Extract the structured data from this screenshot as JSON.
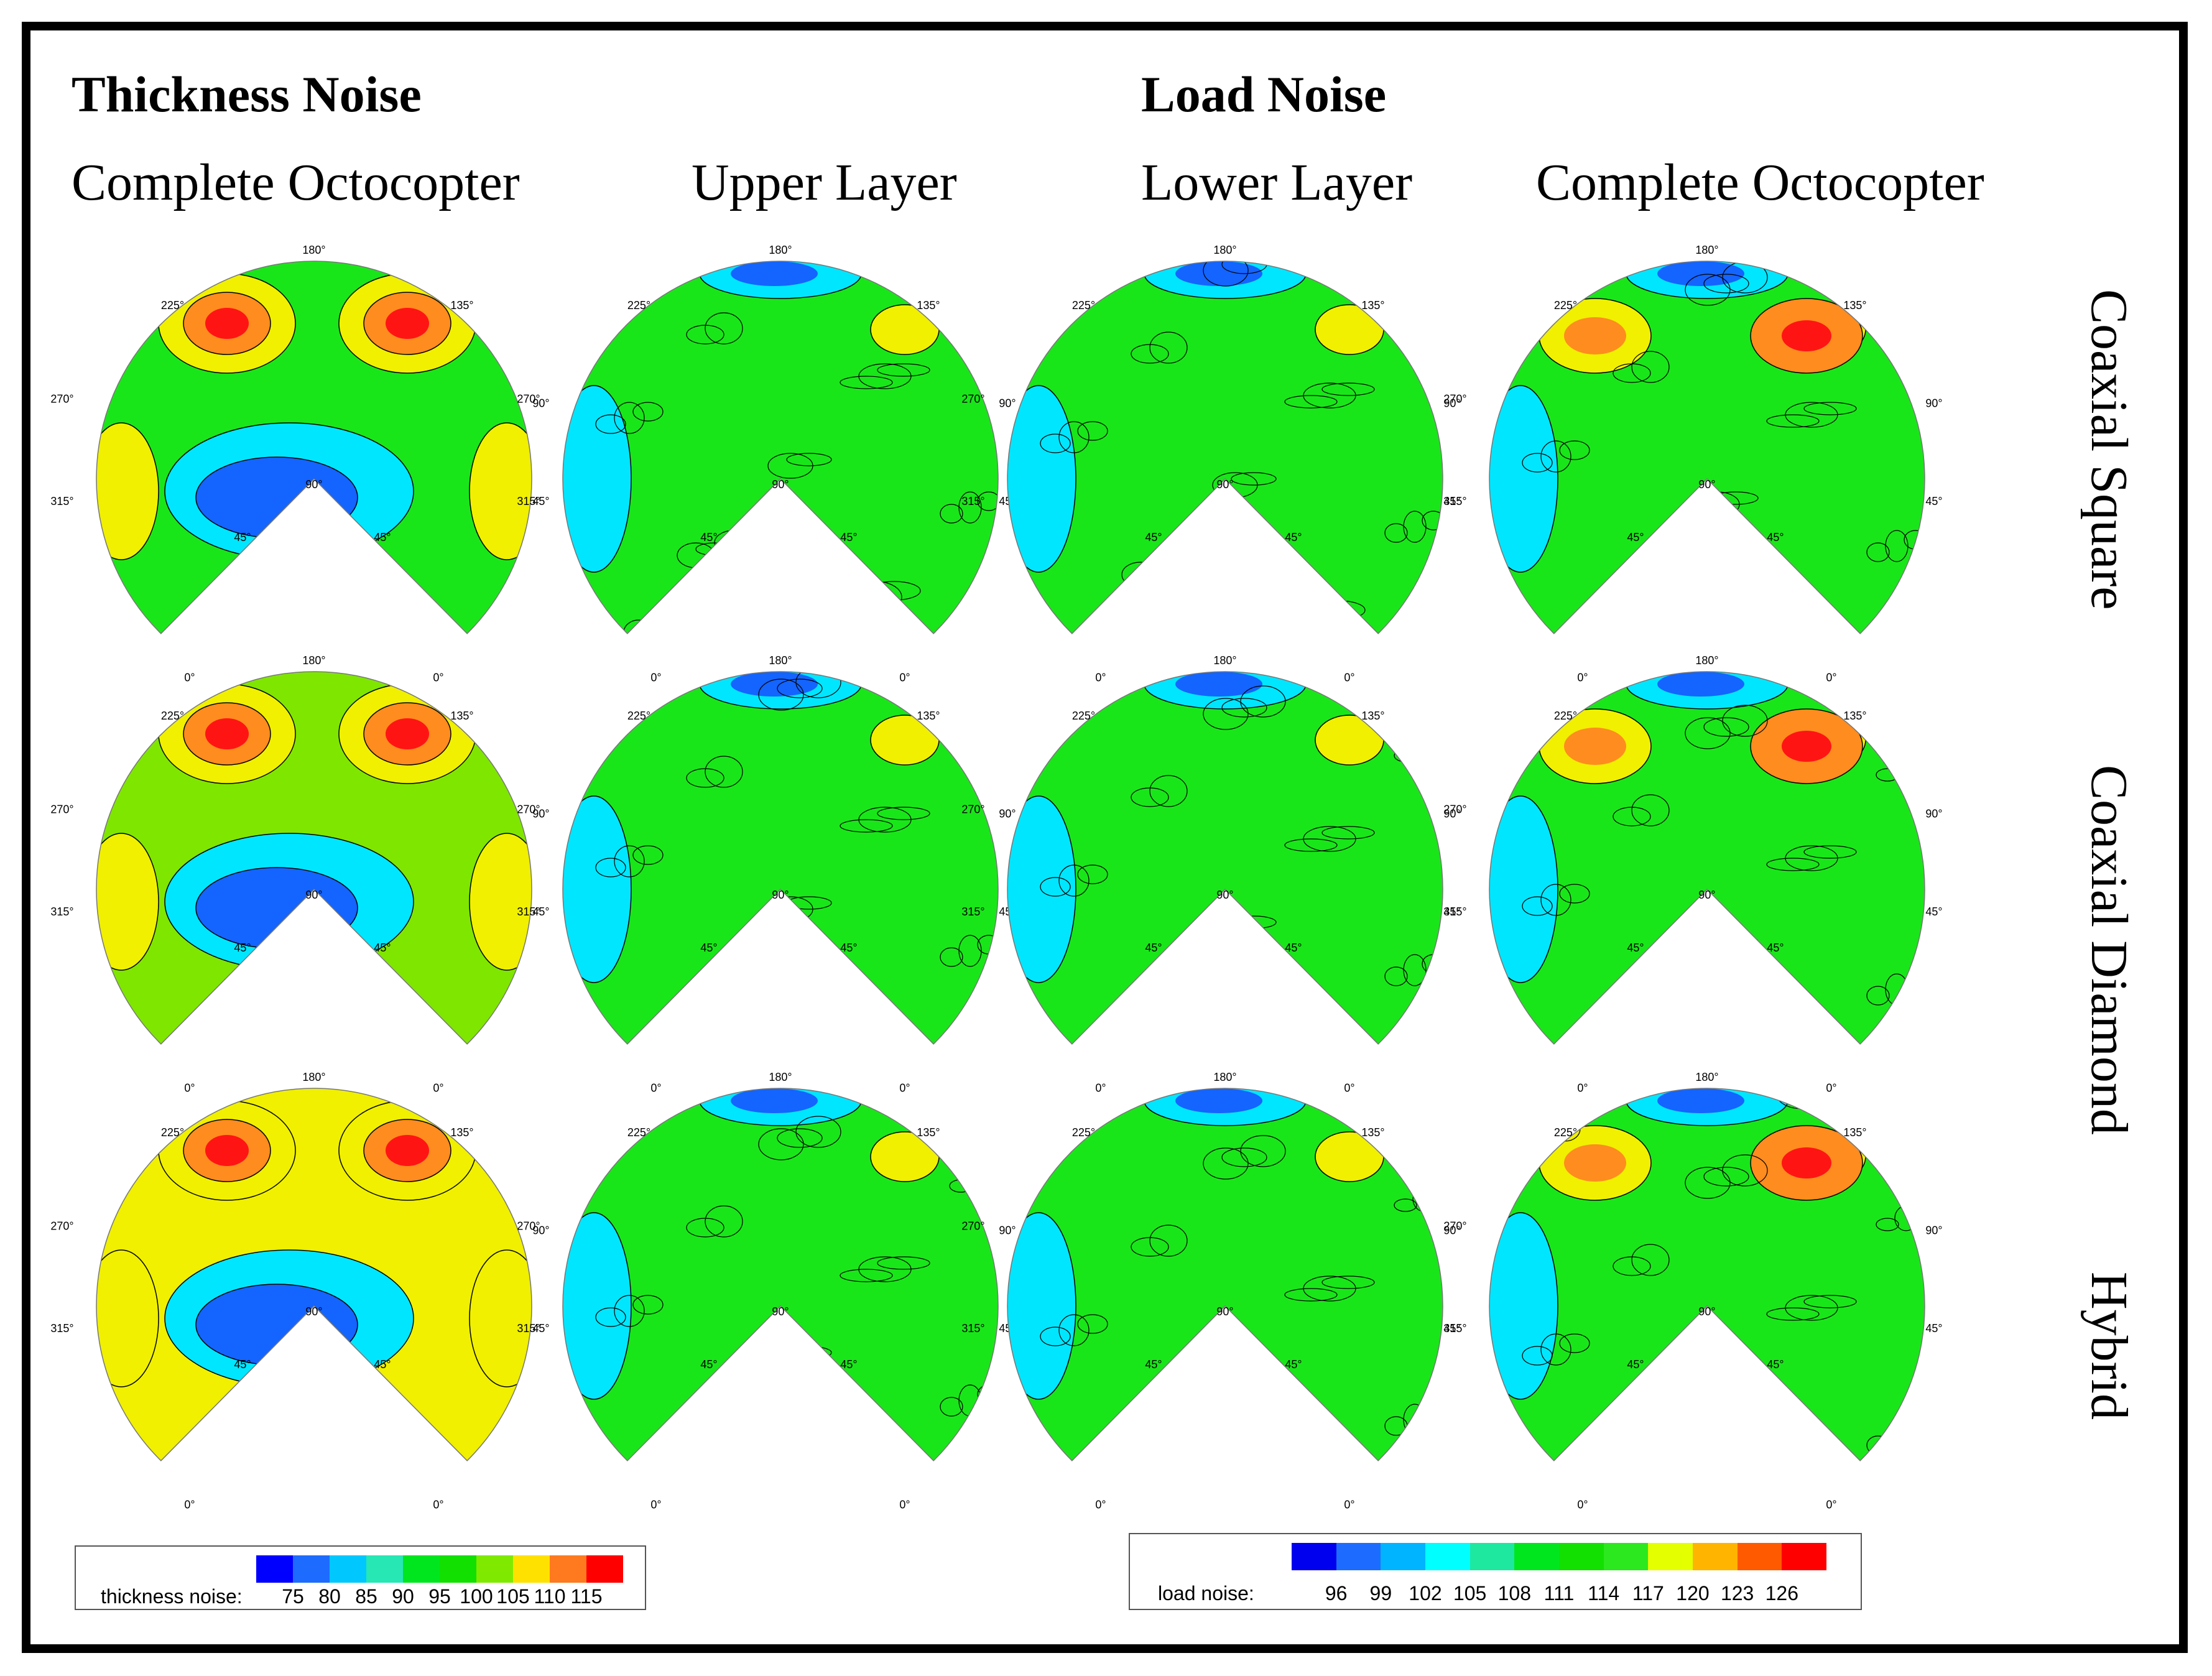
{
  "headers": {
    "thickness": "Thickness Noise",
    "load": "Load Noise",
    "columns": [
      "Complete Octocopter",
      "Upper Layer",
      "Lower Layer",
      "Complete Octocopter"
    ],
    "rows": [
      "Coaxial Square",
      "Coaxial Diamond",
      "Hybrid"
    ]
  },
  "angle_labels": [
    "180°",
    "225°",
    "135°",
    "270°",
    "90°",
    "315°",
    "45°",
    "90°",
    "45°",
    "45°",
    "0°",
    "0°"
  ],
  "legends": {
    "thickness": {
      "title": "thickness noise:",
      "ticks": [
        "75",
        "80",
        "85",
        "90",
        "95",
        "100",
        "105",
        "110",
        "115"
      ],
      "colors": [
        "#0000ff",
        "#1e6cff",
        "#00c8ff",
        "#27e7b4",
        "#00e61e",
        "#12e000",
        "#7fea00",
        "#ffe100",
        "#ff7a1e",
        "#ff0000"
      ]
    },
    "load": {
      "title": "load noise:",
      "ticks": [
        "96",
        "99",
        "102",
        "105",
        "108",
        "111",
        "114",
        "117",
        "120",
        "123",
        "126"
      ],
      "colors": [
        "#0000ee",
        "#1e6cff",
        "#00b4ff",
        "#00ffff",
        "#1ee8a0",
        "#00e61e",
        "#12e000",
        "#2ce81e",
        "#e4ff00",
        "#ffb400",
        "#ff5a00",
        "#ff0000"
      ]
    }
  },
  "colors": {
    "green": "#19e619",
    "yellow": "#f0f000",
    "orange": "#ff8c1e",
    "red": "#ff1414",
    "cyan": "#00e6ff",
    "blue": "#1464ff",
    "lightgreen": "#7fe600",
    "frame": "#000000"
  },
  "plot_colors": [
    [
      "green",
      "green",
      "green",
      "green"
    ],
    [
      "lightgreen",
      "green",
      "green",
      "green"
    ],
    [
      "yellow",
      "green",
      "green",
      "green"
    ]
  ]
}
